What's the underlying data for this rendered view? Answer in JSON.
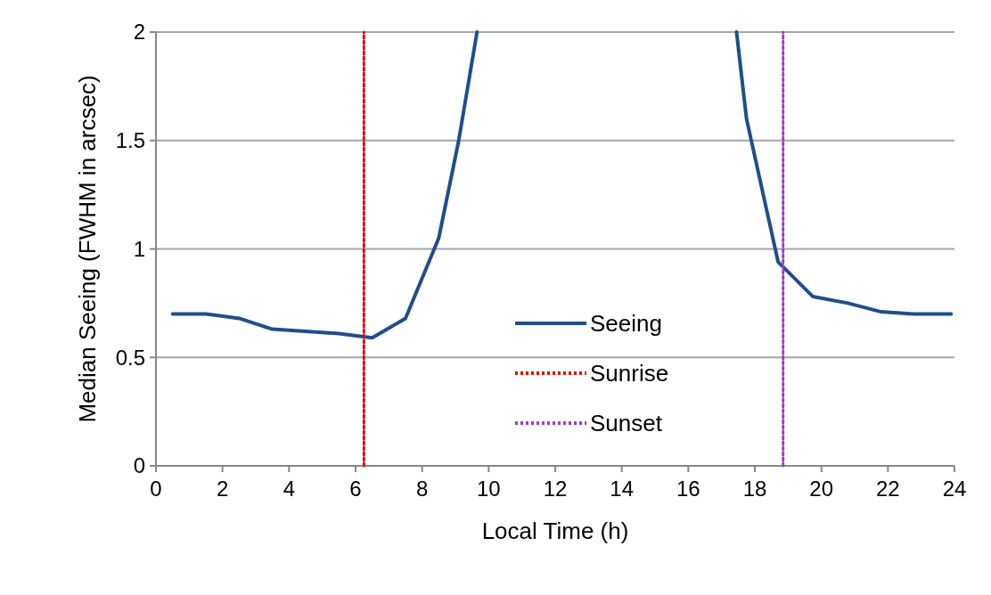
{
  "chart_data": {
    "type": "line",
    "xlabel": "Local Time (h)",
    "ylabel": "Median Seeing (FWHM in arcsec)",
    "xlim": [
      0,
      24
    ],
    "xticks": [
      0,
      2,
      4,
      6,
      8,
      10,
      12,
      14,
      16,
      18,
      20,
      22,
      24
    ],
    "ylim": [
      0,
      2
    ],
    "yticks": [
      0,
      0.5,
      1,
      1.5,
      2
    ],
    "grid": "y",
    "legend": "bottom right",
    "line_style": "solid",
    "marker": "none",
    "series": [
      {
        "name": "Seeing",
        "color": "#1f4e8c",
        "x": [
          0.5,
          1.5,
          2.5,
          3.5,
          4.5,
          5.5,
          6.5,
          7.5,
          8.5,
          9.1,
          9.65,
          null,
          17.45,
          17.75,
          18.7,
          19.75,
          20.8,
          21.8,
          22.8,
          23.9
        ],
        "values": [
          0.7,
          0.7,
          0.68,
          0.63,
          0.62,
          0.61,
          0.59,
          0.68,
          1.05,
          1.5,
          2,
          null,
          2,
          1.6,
          0.94,
          0.78,
          0.75,
          0.71,
          0.7,
          0.7
        ]
      },
      {
        "name": "Sunrise",
        "color": "#e01010",
        "line_style": "dotted",
        "x": [
          6.25,
          6.25
        ],
        "values": [
          0,
          2
        ]
      },
      {
        "name": "Sunset",
        "color": "#9a40c8",
        "line_style": "dotted",
        "x": [
          18.85,
          18.85
        ],
        "values": [
          0,
          2
        ]
      }
    ]
  }
}
